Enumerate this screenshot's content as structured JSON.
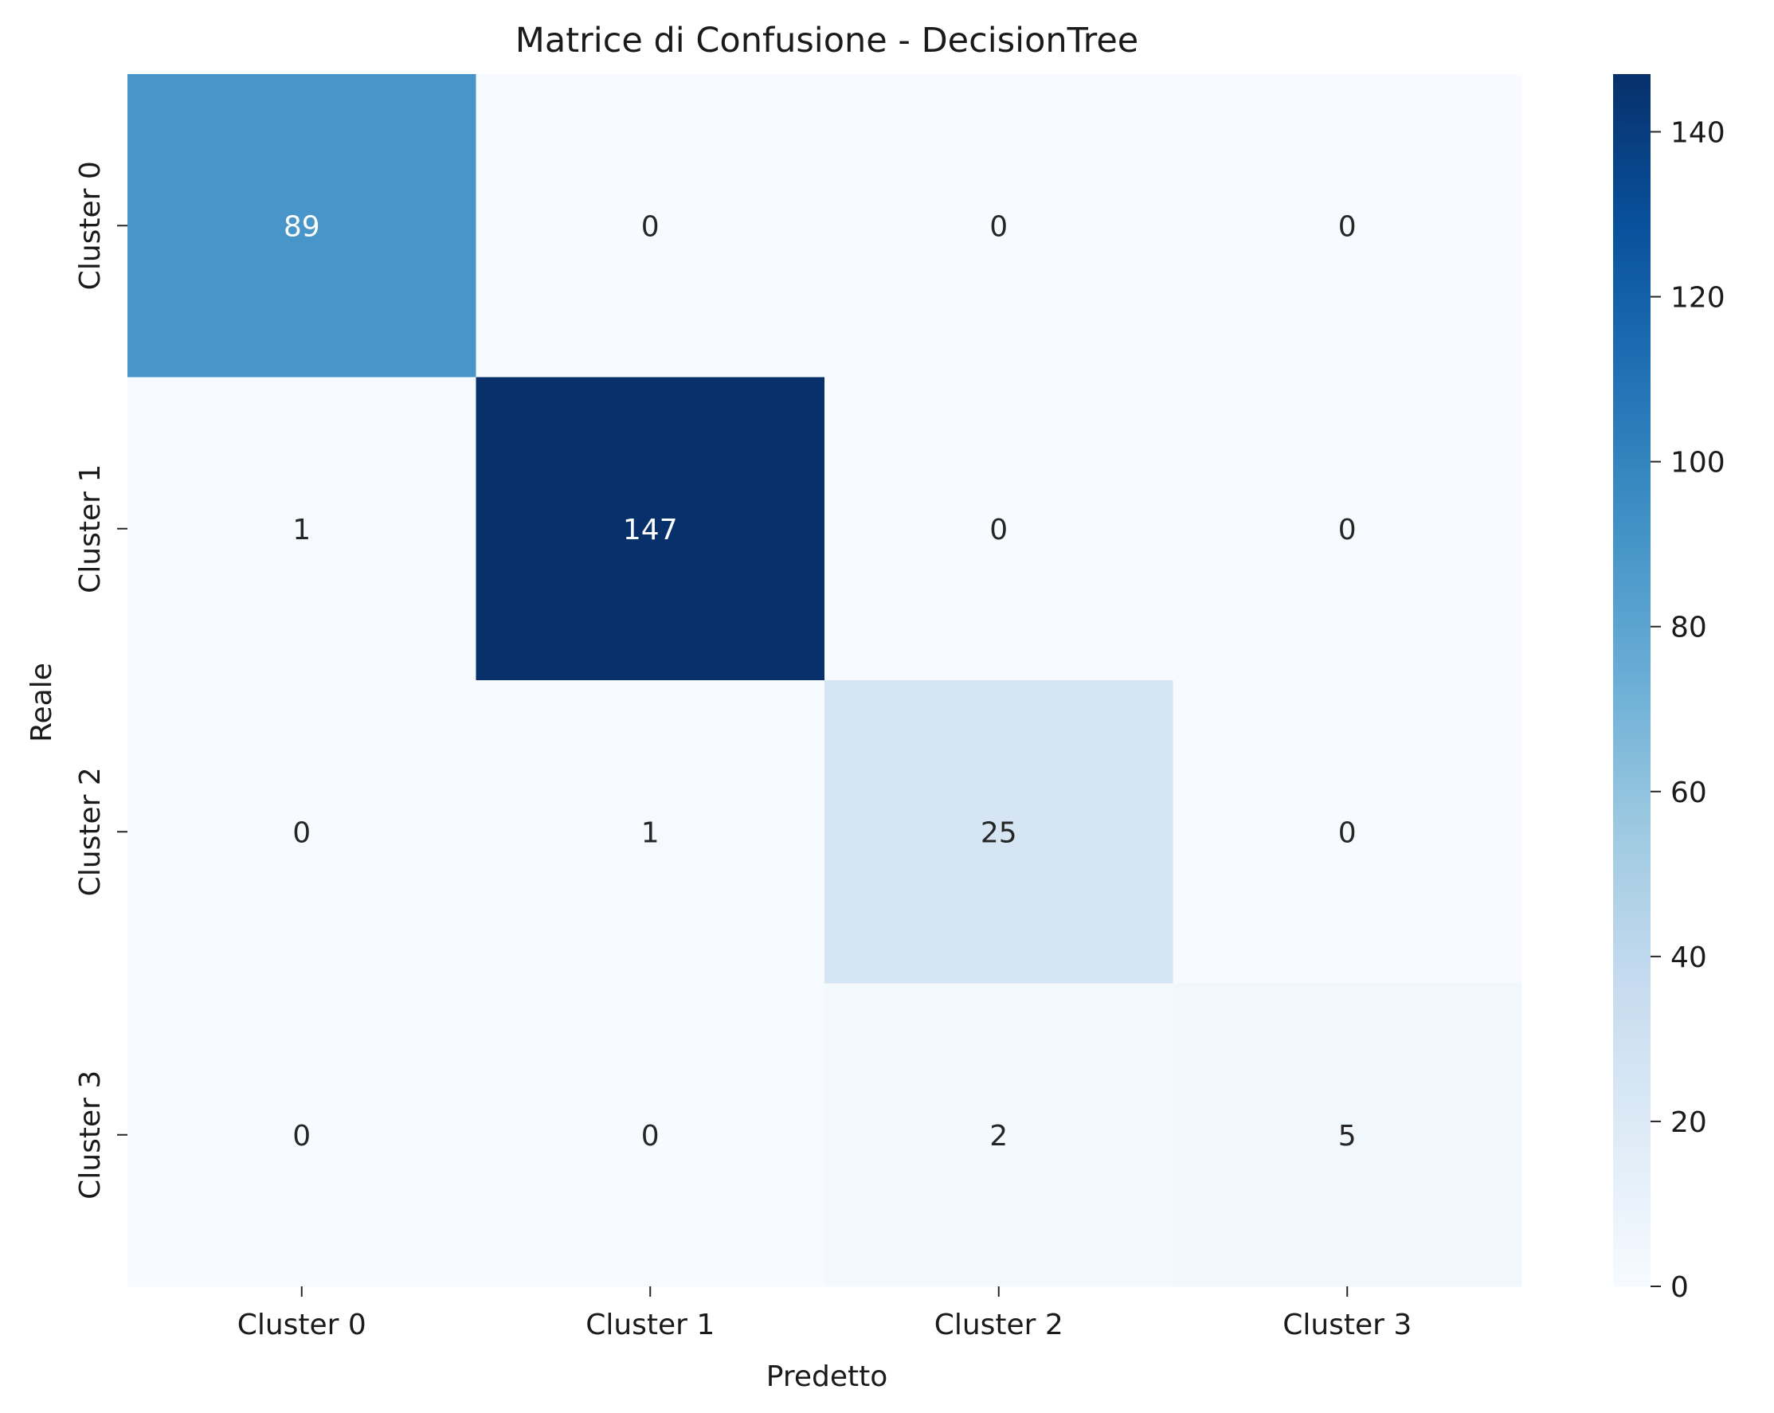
{
  "chart_data": {
    "type": "heatmap",
    "title": "Matrice di Confusione - DecisionTree",
    "xlabel": "Predetto",
    "ylabel": "Reale",
    "x_categories": [
      "Cluster 0",
      "Cluster 1",
      "Cluster 2",
      "Cluster 3"
    ],
    "y_categories": [
      "Cluster 0",
      "Cluster 1",
      "Cluster 2",
      "Cluster 3"
    ],
    "values": [
      [
        89,
        0,
        0,
        0
      ],
      [
        1,
        147,
        0,
        0
      ],
      [
        0,
        1,
        25,
        0
      ],
      [
        0,
        0,
        2,
        5
      ]
    ],
    "colormap": "Blues",
    "colorbar": {
      "range": [
        0,
        147
      ],
      "ticks": [
        0,
        20,
        40,
        60,
        80,
        100,
        120,
        140
      ]
    }
  }
}
